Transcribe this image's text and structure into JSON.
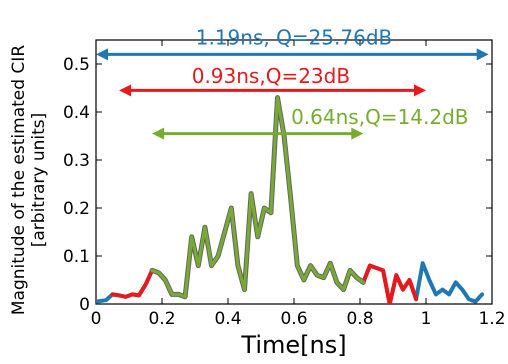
{
  "chart_data": {
    "type": "line",
    "xlabel": "Time[ns]",
    "ylabel_lines": [
      "Magnitude of the estimated CIR",
      "[arbitrary units]"
    ],
    "xlim": [
      0,
      1.2
    ],
    "ylim": [
      0,
      0.55
    ],
    "x_ticks": [
      {
        "value": 0,
        "label": "0"
      },
      {
        "value": 0.2,
        "label": "0.2"
      },
      {
        "value": 0.4,
        "label": "0.4"
      },
      {
        "value": 0.6,
        "label": "0.6"
      },
      {
        "value": 0.8,
        "label": "0.8"
      },
      {
        "value": 1.0,
        "label": "1"
      },
      {
        "value": 1.2,
        "label": "1.2"
      }
    ],
    "y_ticks": [
      {
        "value": 0,
        "label": "0"
      },
      {
        "value": 0.1,
        "label": "0.1"
      },
      {
        "value": 0.2,
        "label": "0.2"
      },
      {
        "value": 0.3,
        "label": "0.3"
      },
      {
        "value": 0.4,
        "label": "0.4"
      },
      {
        "value": 0.5,
        "label": "0.5"
      }
    ],
    "grid": false,
    "series": [
      {
        "color": "#1f77b4",
        "width": 4,
        "x": [
          0.0,
          0.03,
          0.05,
          0.07,
          0.09,
          0.11,
          0.13,
          0.15,
          0.17,
          0.19,
          0.21,
          0.23,
          0.25,
          0.27,
          0.29,
          0.31,
          0.33,
          0.35,
          0.37,
          0.39,
          0.41,
          0.43,
          0.45,
          0.47,
          0.49,
          0.51,
          0.53,
          0.55,
          0.57,
          0.59,
          0.61,
          0.63,
          0.65,
          0.67,
          0.69,
          0.71,
          0.73,
          0.75,
          0.77,
          0.79,
          0.81,
          0.83,
          0.85,
          0.87,
          0.89,
          0.91,
          0.93,
          0.95,
          0.97,
          0.99,
          1.01,
          1.03,
          1.05,
          1.07,
          1.09,
          1.11,
          1.13,
          1.15,
          1.17
        ],
        "y": [
          0.005,
          0.008,
          0.02,
          0.018,
          0.015,
          0.02,
          0.018,
          0.04,
          0.07,
          0.065,
          0.05,
          0.02,
          0.02,
          0.015,
          0.14,
          0.08,
          0.16,
          0.08,
          0.1,
          0.15,
          0.2,
          0.08,
          0.03,
          0.23,
          0.14,
          0.2,
          0.19,
          0.43,
          0.35,
          0.22,
          0.08,
          0.05,
          0.08,
          0.06,
          0.055,
          0.085,
          0.045,
          0.03,
          0.07,
          0.055,
          0.045,
          0.08,
          0.075,
          0.07,
          0.0,
          0.06,
          0.03,
          0.05,
          0.01,
          0.085,
          0.05,
          0.02,
          0.03,
          0.02,
          0.045,
          0.03,
          0.01,
          0.005,
          0.02
        ]
      },
      {
        "color": "#e8191b",
        "width": 4,
        "x": [
          0.05,
          0.07,
          0.09,
          0.11,
          0.13,
          0.15,
          0.17,
          0.19,
          0.21,
          0.23,
          0.25,
          0.27,
          0.29,
          0.31,
          0.33,
          0.35,
          0.37,
          0.39,
          0.41,
          0.43,
          0.45,
          0.47,
          0.49,
          0.51,
          0.53,
          0.55,
          0.57,
          0.59,
          0.61,
          0.63,
          0.65,
          0.67,
          0.69,
          0.71,
          0.73,
          0.75,
          0.77,
          0.79,
          0.81,
          0.83,
          0.85,
          0.87,
          0.89,
          0.91,
          0.93,
          0.95,
          0.97
        ],
        "y": [
          0.02,
          0.018,
          0.015,
          0.02,
          0.018,
          0.04,
          0.07,
          0.065,
          0.05,
          0.02,
          0.02,
          0.015,
          0.14,
          0.08,
          0.16,
          0.08,
          0.1,
          0.15,
          0.2,
          0.08,
          0.03,
          0.23,
          0.14,
          0.2,
          0.19,
          0.43,
          0.35,
          0.22,
          0.08,
          0.05,
          0.08,
          0.06,
          0.055,
          0.085,
          0.045,
          0.03,
          0.07,
          0.055,
          0.045,
          0.08,
          0.075,
          0.07,
          0.0,
          0.06,
          0.03,
          0.05,
          0.01
        ]
      },
      {
        "color": "#77ac30",
        "width": 3,
        "outline": "#666666",
        "x": [
          0.17,
          0.19,
          0.21,
          0.23,
          0.25,
          0.27,
          0.29,
          0.31,
          0.33,
          0.35,
          0.37,
          0.39,
          0.41,
          0.43,
          0.45,
          0.47,
          0.49,
          0.51,
          0.53,
          0.55,
          0.57,
          0.59,
          0.61,
          0.63,
          0.65,
          0.67,
          0.69,
          0.71,
          0.73,
          0.75,
          0.77,
          0.79,
          0.81
        ],
        "y": [
          0.07,
          0.065,
          0.05,
          0.02,
          0.02,
          0.015,
          0.14,
          0.08,
          0.16,
          0.08,
          0.1,
          0.15,
          0.2,
          0.08,
          0.03,
          0.23,
          0.14,
          0.2,
          0.19,
          0.43,
          0.35,
          0.22,
          0.08,
          0.05,
          0.08,
          0.06,
          0.055,
          0.085,
          0.045,
          0.03,
          0.07,
          0.055,
          0.045
        ]
      }
    ],
    "annotations": [
      {
        "label": "1.19ns, Q=25.76dB",
        "color": "#1f77b4",
        "x_start": 0.0,
        "x_end": 1.19,
        "y": 0.52,
        "label_x": 0.6,
        "label_y": 0.555
      },
      {
        "label": "0.93ns,Q=23dB",
        "color": "#e8191b",
        "x_start": 0.07,
        "x_end": 1.0,
        "y": 0.445,
        "label_x": 0.53,
        "label_y": 0.475
      },
      {
        "label": "0.64ns,Q=14.2dB",
        "color": "#77ac30",
        "x_start": 0.17,
        "x_end": 0.81,
        "y": 0.355,
        "label_x": 0.86,
        "label_y": 0.39
      }
    ]
  }
}
